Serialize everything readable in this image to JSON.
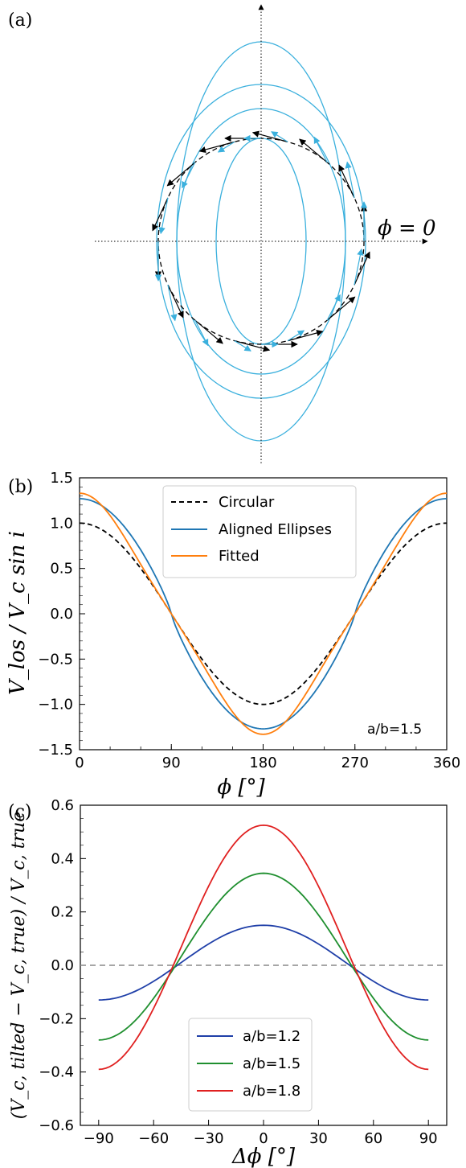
{
  "chart_data": [
    {
      "panel": "(a)",
      "type": "diagram",
      "annotation": "ϕ = 0",
      "ellipse_axis_ratio_labels": [],
      "colors": {
        "ellipses": "#3bb0dd",
        "circle": "#000000",
        "arrows_blue": "#3bb0dd",
        "arrows_black": "#000000"
      }
    },
    {
      "panel": "(b)",
      "type": "line",
      "xlabel": "ϕ [°]",
      "ylabel": "V_los / V_c sin i",
      "xlim": [
        0,
        360
      ],
      "ylim": [
        -1.5,
        1.5
      ],
      "xticks": [
        "0",
        "90",
        "180",
        "270",
        "360"
      ],
      "yticks": [
        "1.5",
        "1.0",
        "0.5",
        "0.0",
        "−0.5",
        "−1.0",
        "−1.5"
      ],
      "annotation": "a/b=1.5",
      "legend": {
        "placement": "top-center",
        "entries": [
          "Circular",
          "Aligned Ellipses",
          "Fitted"
        ]
      },
      "series": [
        {
          "name": "Circular",
          "color": "#000000",
          "style": "dashed",
          "model": "cos",
          "amplitude": 1.0
        },
        {
          "name": "Aligned Ellipses",
          "color": "#1f77b4",
          "style": "solid",
          "model": "ellipse",
          "axis_ratio": 1.5
        },
        {
          "name": "Fitted",
          "color": "#ff7f0e",
          "style": "solid",
          "model": "cos_plus_cos3",
          "amplitude": 1.25,
          "cos3_amplitude": 0.08
        }
      ]
    },
    {
      "panel": "(c)",
      "type": "line",
      "xlabel": "Δϕ [°]",
      "ylabel": "(V_c, tilted − V_c, true) / V_c, true",
      "xlim": [
        -100,
        100
      ],
      "ylim": [
        -0.6,
        0.6
      ],
      "xticks": [
        "−90",
        "−60",
        "−30",
        "0",
        "30",
        "60",
        "90"
      ],
      "yticks": [
        "0.6",
        "0.4",
        "0.2",
        "0.0",
        "−0.2",
        "−0.4",
        "−0.6"
      ],
      "reference_line": 0.0,
      "legend": {
        "placement": "bottom-center",
        "entries": [
          "a/b=1.2",
          "a/b=1.5",
          "a/b=1.8"
        ]
      },
      "series": [
        {
          "name": "a/b=1.2",
          "color": "#1f3fa8",
          "peak": 0.15,
          "end": -0.13
        },
        {
          "name": "a/b=1.5",
          "color": "#1f8f2f",
          "peak": 0.345,
          "end": -0.28
        },
        {
          "name": "a/b=1.8",
          "color": "#e02020",
          "peak": 0.525,
          "end": -0.39
        }
      ]
    }
  ]
}
